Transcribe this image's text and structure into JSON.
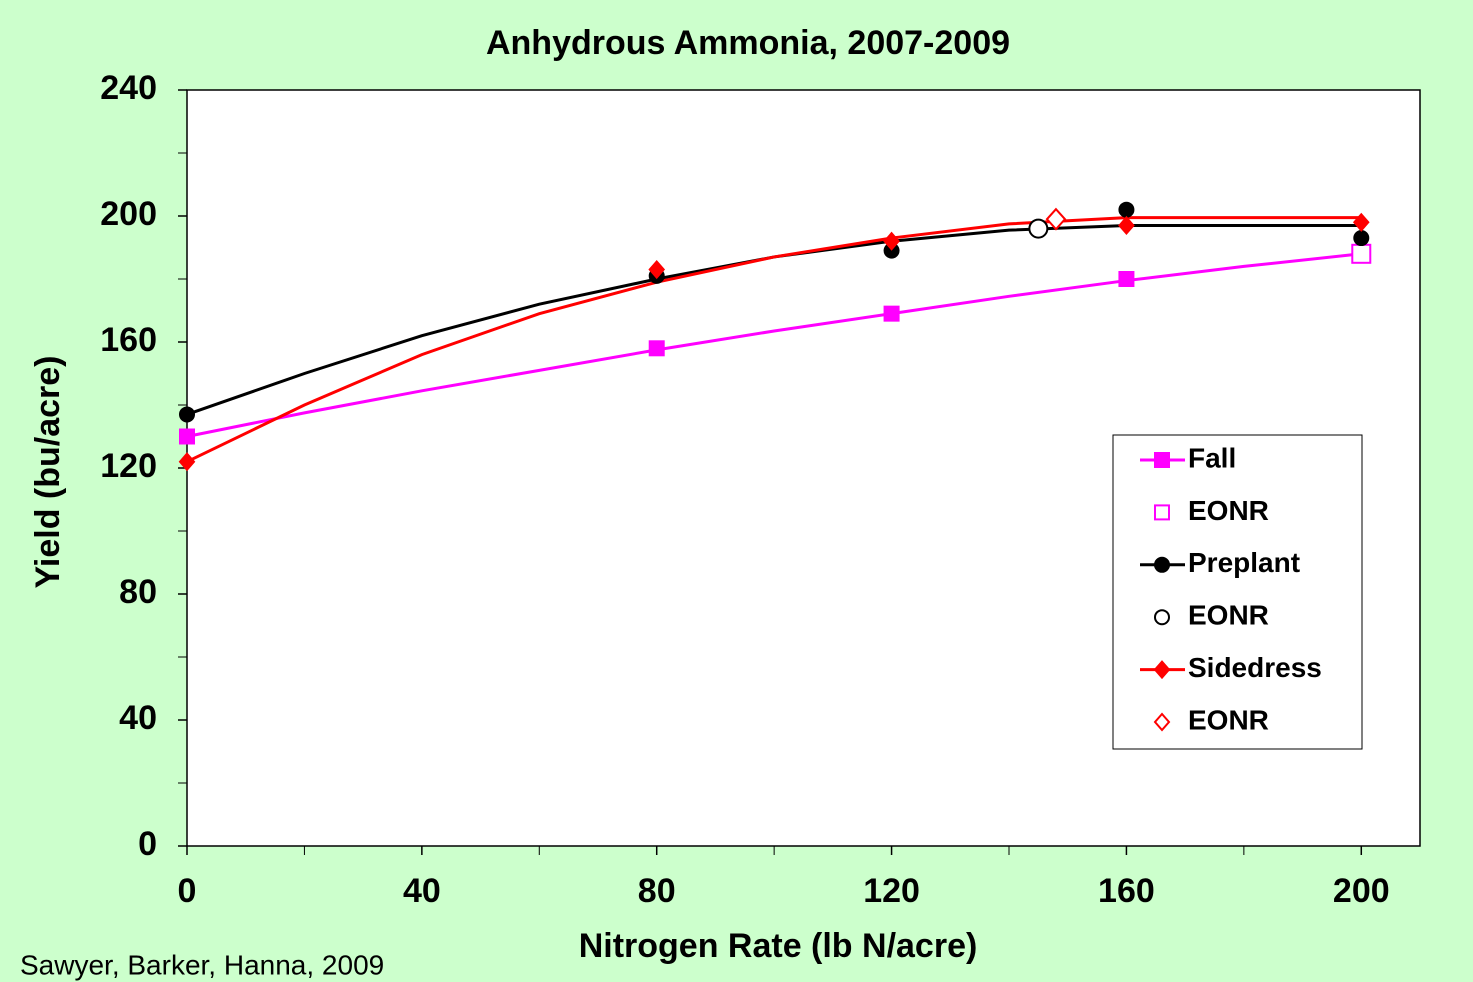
{
  "chart_data": {
    "type": "scatter",
    "title": "Anhydrous Ammonia, 2007-2009",
    "x_label": "Nitrogen Rate (lb N/acre)",
    "y_label": "Yield (bu/acre)",
    "source": "Sawyer, Barker, Hanna, 2009",
    "xlim": [
      0,
      210
    ],
    "ylim": [
      0,
      240
    ],
    "xticks": [
      0,
      40,
      80,
      120,
      160,
      200
    ],
    "yticks": [
      0,
      40,
      80,
      120,
      160,
      200,
      240
    ],
    "xminorticks": [
      20,
      60,
      100,
      140,
      180
    ],
    "yminorticks": [
      20,
      60,
      100,
      140,
      180,
      220
    ],
    "legend": "right",
    "series": [
      {
        "name": "Fall",
        "color": "#ff00ff",
        "marker": "square",
        "filled": true,
        "x": [
          0,
          80,
          120,
          160,
          200
        ],
        "values": [
          130,
          158,
          169,
          180,
          188
        ],
        "curve": {
          "x": [
            0,
            20,
            40,
            60,
            80,
            100,
            120,
            140,
            160,
            180,
            200
          ],
          "values": [
            130,
            137.5,
            144.5,
            151,
            157.5,
            163.5,
            169,
            174.5,
            179.5,
            184,
            188
          ]
        }
      },
      {
        "name": "EONR",
        "color": "#ff00ff",
        "marker": "square",
        "filled": false,
        "x": [
          200
        ],
        "values": [
          188
        ]
      },
      {
        "name": "Preplant",
        "color": "#000000",
        "marker": "circle",
        "filled": true,
        "x": [
          0,
          80,
          120,
          160,
          200
        ],
        "values": [
          137,
          181,
          189,
          202,
          193
        ],
        "curve": {
          "x": [
            0,
            20,
            40,
            60,
            80,
            100,
            120,
            140,
            160,
            180,
            200
          ],
          "values": [
            137,
            150,
            162,
            172,
            180,
            187,
            192,
            195.5,
            197,
            197,
            197
          ]
        }
      },
      {
        "name": "EONR",
        "color": "#000000",
        "marker": "circle",
        "filled": false,
        "x": [
          145
        ],
        "values": [
          196
        ]
      },
      {
        "name": "Sidedress",
        "color": "#ff0000",
        "marker": "diamond",
        "filled": true,
        "x": [
          0,
          80,
          120,
          160,
          200
        ],
        "values": [
          122,
          183,
          192,
          197,
          198
        ],
        "curve": {
          "x": [
            0,
            20,
            40,
            60,
            80,
            100,
            120,
            140,
            160,
            180,
            200
          ],
          "values": [
            122,
            140,
            156,
            169,
            179,
            187,
            193,
            197.5,
            199.5,
            199.5,
            199.5
          ]
        }
      },
      {
        "name": "EONR",
        "color": "#ff0000",
        "marker": "diamond",
        "filled": false,
        "x": [
          148
        ],
        "values": [
          199
        ]
      }
    ]
  }
}
